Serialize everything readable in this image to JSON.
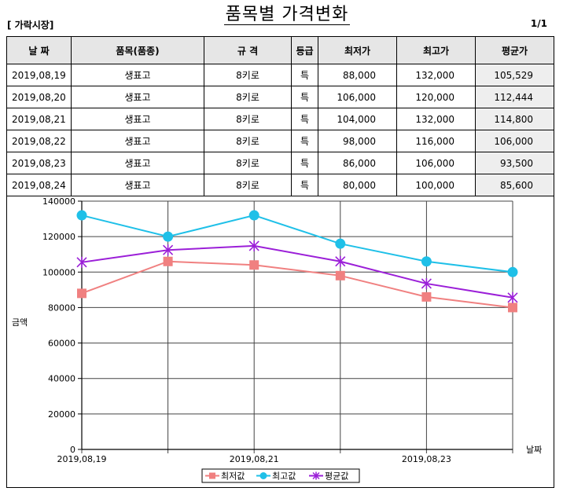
{
  "header": {
    "title": "품목별 가격변화",
    "market": "[ 가락시장]",
    "page": "1/1"
  },
  "table": {
    "columns": [
      "날 짜",
      "품목(품종)",
      "규 격",
      "등급",
      "최저가",
      "최고가",
      "평균가"
    ],
    "rows": [
      [
        "2019,08,19",
        "생표고",
        "8키로",
        "특",
        "88,000",
        "132,000",
        "105,529"
      ],
      [
        "2019,08,20",
        "생표고",
        "8키로",
        "특",
        "106,000",
        "120,000",
        "112,444"
      ],
      [
        "2019,08,21",
        "생표고",
        "8키로",
        "특",
        "104,000",
        "132,000",
        "114,800"
      ],
      [
        "2019,08,22",
        "생표고",
        "8키로",
        "특",
        "98,000",
        "116,000",
        "106,000"
      ],
      [
        "2019,08,23",
        "생표고",
        "8키로",
        "특",
        "86,000",
        "106,000",
        "93,500"
      ],
      [
        "2019,08,24",
        "생표고",
        "8키로",
        "특",
        "80,000",
        "100,000",
        "85,600"
      ]
    ]
  },
  "chart_data": {
    "type": "line",
    "categories": [
      "2019,08,19",
      "2019,08,20",
      "2019,08,21",
      "2019,08,22",
      "2019,08,23",
      "2019,08,24"
    ],
    "x_tick_labels": [
      "2019,08,19",
      "",
      "2019,08,21",
      "",
      "2019,08,23",
      ""
    ],
    "y_ticks": [
      "0",
      "20000",
      "40000",
      "60000",
      "80000",
      "100000",
      "120000",
      "140000"
    ],
    "ylim": [
      0,
      140000
    ],
    "xlabel": "날짜",
    "ylabel": "금액",
    "legend_position": "bottom",
    "series": [
      {
        "name": "최저값",
        "color": "#f08080",
        "marker": "square",
        "values": [
          88000,
          106000,
          104000,
          98000,
          86000,
          80000
        ]
      },
      {
        "name": "최고값",
        "color": "#1fc0e8",
        "marker": "circle",
        "values": [
          132000,
          120000,
          132000,
          116000,
          106000,
          100000
        ]
      },
      {
        "name": "평균값",
        "color": "#9b1fd8",
        "marker": "star",
        "values": [
          105529,
          112444,
          114800,
          106000,
          93500,
          85600
        ]
      }
    ]
  }
}
